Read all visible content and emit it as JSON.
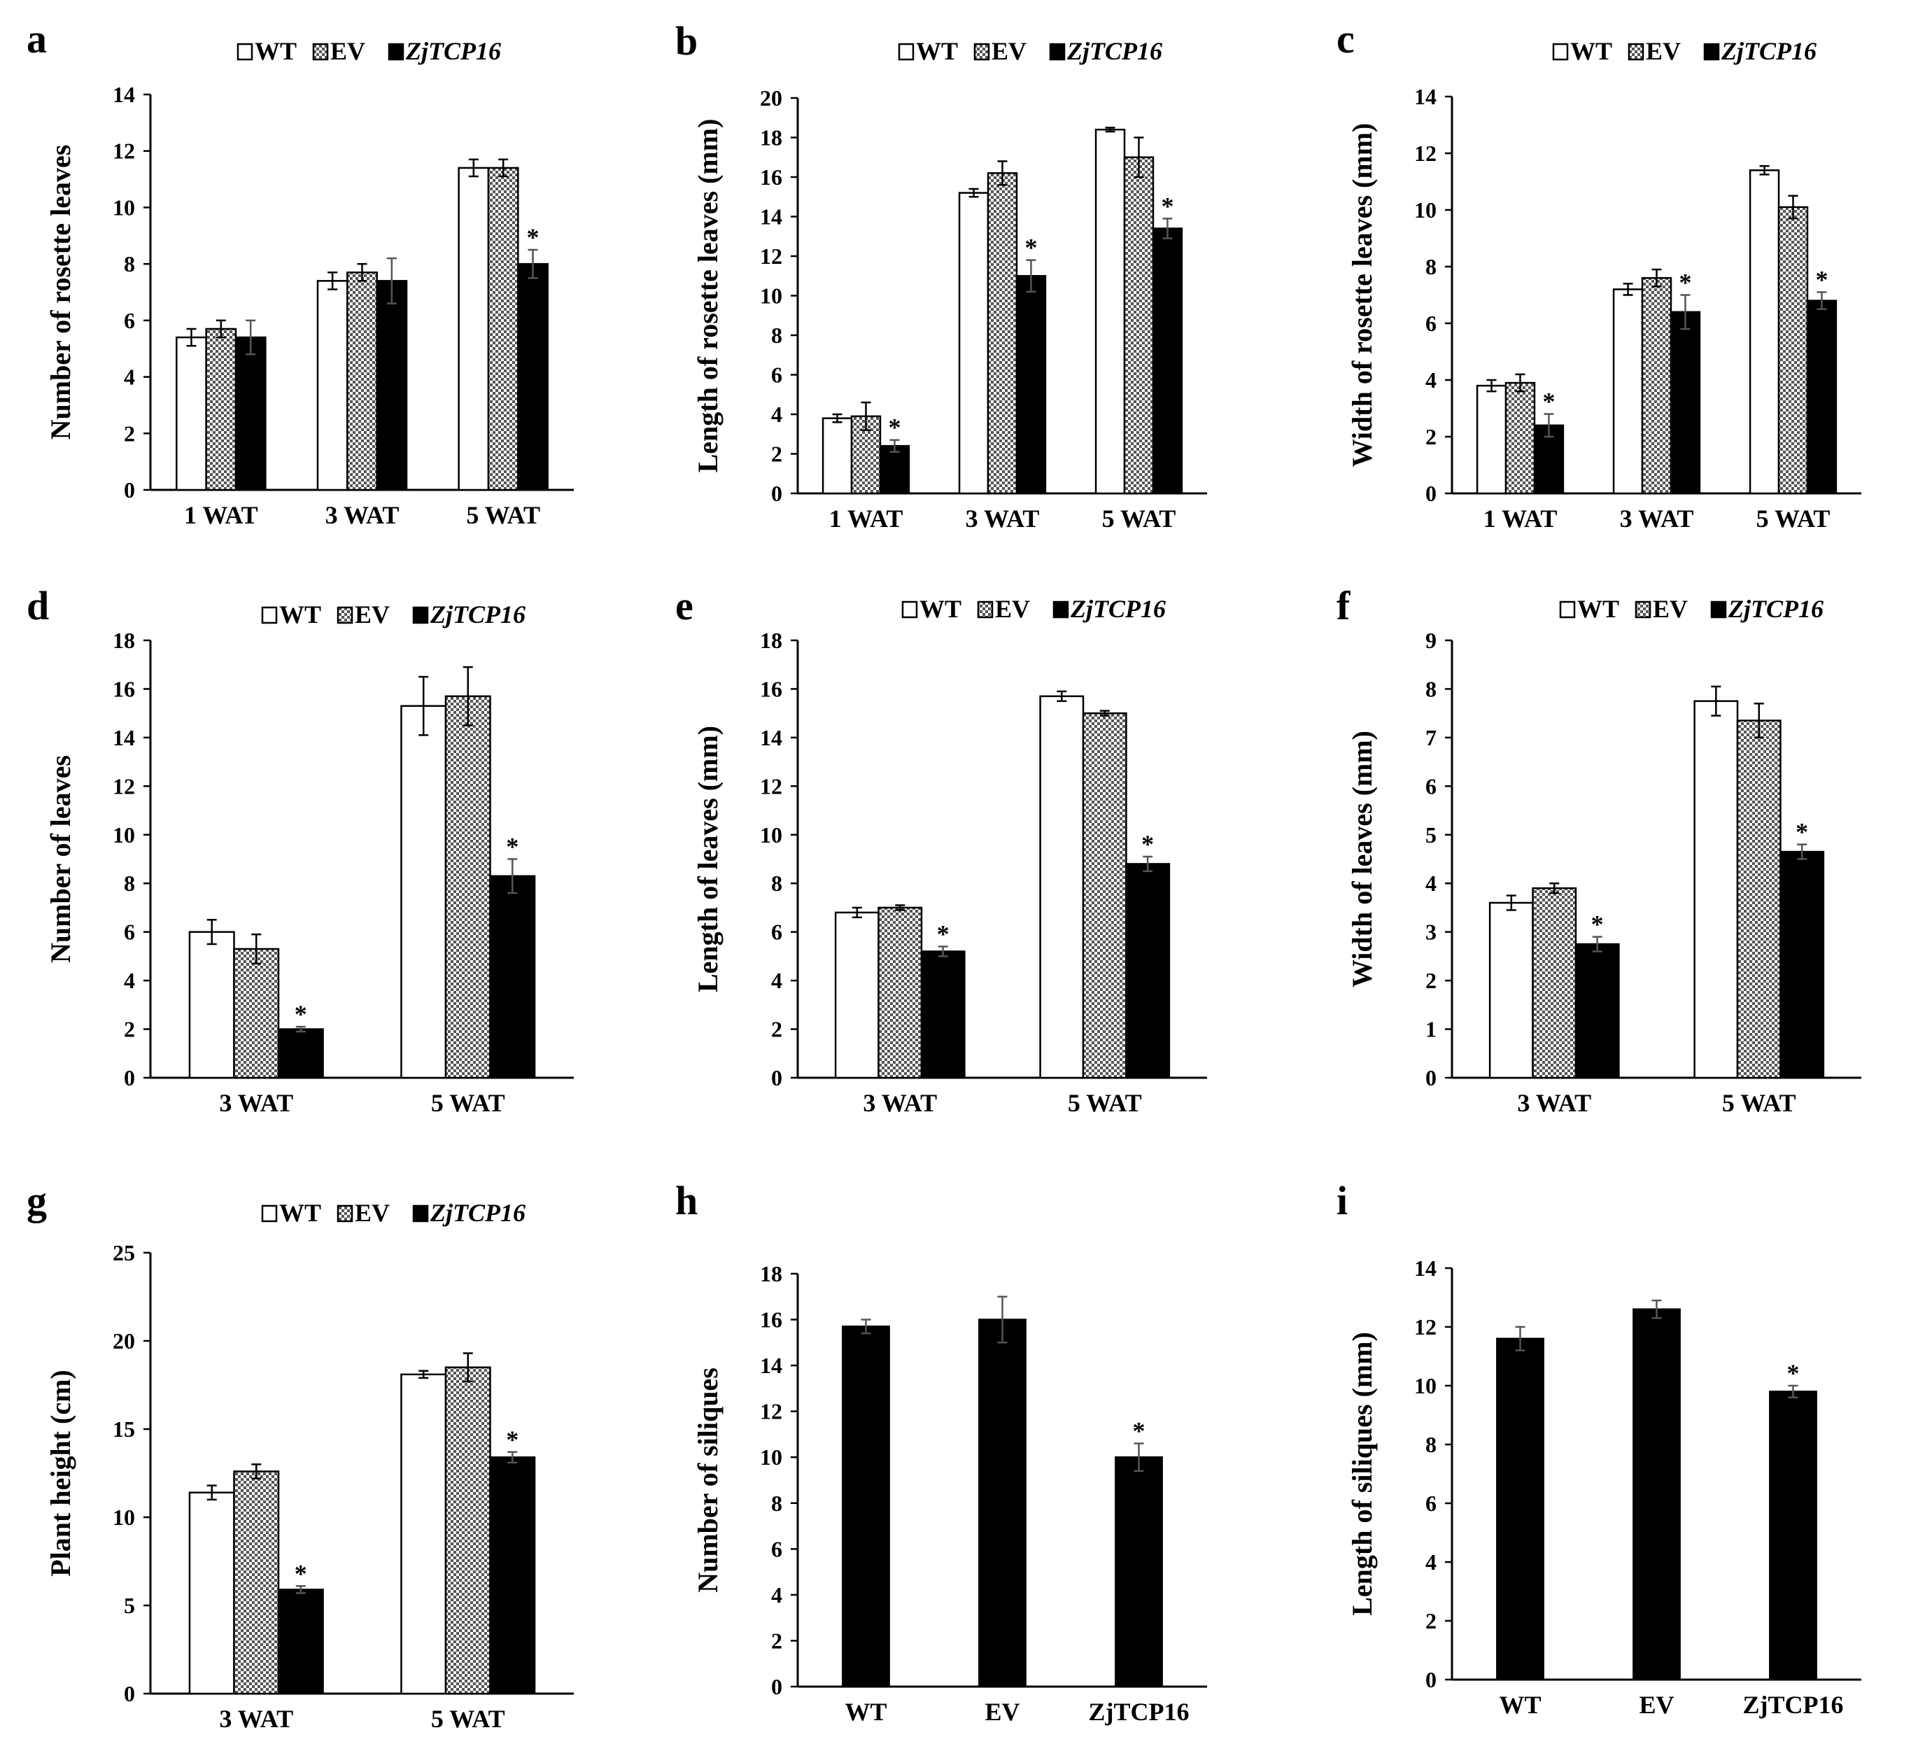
{
  "chart_data": [
    {
      "panel": "a",
      "type": "bar",
      "ylabel": "Number of rosette leaves",
      "ylim": [
        0,
        14
      ],
      "ystep": 2,
      "legend": [
        "WT",
        "EV",
        "ZjTCP16"
      ],
      "legend_position": "top",
      "categories": [
        "1 WAT",
        "3 WAT",
        "5 WAT"
      ],
      "series": [
        {
          "name": "WT",
          "fill": "white",
          "values": [
            5.4,
            7.4,
            11.4
          ],
          "errors": [
            0.3,
            0.3,
            0.3
          ],
          "sig": [
            false,
            false,
            false
          ]
        },
        {
          "name": "EV",
          "fill": "check",
          "values": [
            5.7,
            7.7,
            11.4
          ],
          "errors": [
            0.3,
            0.3,
            0.3
          ],
          "sig": [
            false,
            false,
            false
          ]
        },
        {
          "name": "ZjTCP16",
          "fill": "black",
          "values": [
            5.4,
            7.4,
            8.0
          ],
          "errors": [
            0.6,
            0.8,
            0.5
          ],
          "sig": [
            false,
            false,
            true
          ]
        }
      ]
    },
    {
      "panel": "b",
      "type": "bar",
      "ylabel": "Length of rosette leaves (mm)",
      "ylim": [
        0,
        20
      ],
      "ystep": 2,
      "legend": [
        "WT",
        "EV",
        "ZjTCP16"
      ],
      "legend_position": "top",
      "categories": [
        "1 WAT",
        "3 WAT",
        "5 WAT"
      ],
      "series": [
        {
          "name": "WT",
          "fill": "white",
          "values": [
            3.8,
            15.2,
            18.4
          ],
          "errors": [
            0.2,
            0.2,
            0.1
          ],
          "sig": [
            false,
            false,
            false
          ]
        },
        {
          "name": "EV",
          "fill": "check",
          "values": [
            3.9,
            16.2,
            17.0
          ],
          "errors": [
            0.7,
            0.6,
            1.0
          ],
          "sig": [
            false,
            false,
            false
          ]
        },
        {
          "name": "ZjTCP16",
          "fill": "black",
          "values": [
            2.4,
            11.0,
            13.4
          ],
          "errors": [
            0.3,
            0.8,
            0.5
          ],
          "sig": [
            true,
            true,
            true
          ]
        }
      ]
    },
    {
      "panel": "c",
      "type": "bar",
      "ylabel": "Width of rosette leaves (mm)",
      "ylim": [
        0,
        14
      ],
      "ystep": 2,
      "legend": [
        "WT",
        "EV",
        "ZjTCP16"
      ],
      "legend_position": "top",
      "categories": [
        "1 WAT",
        "3 WAT",
        "5 WAT"
      ],
      "series": [
        {
          "name": "WT",
          "fill": "white",
          "values": [
            3.8,
            7.2,
            11.4
          ],
          "errors": [
            0.2,
            0.2,
            0.15
          ],
          "sig": [
            false,
            false,
            false
          ]
        },
        {
          "name": "EV",
          "fill": "check",
          "values": [
            3.9,
            7.6,
            10.1
          ],
          "errors": [
            0.3,
            0.3,
            0.4
          ],
          "sig": [
            false,
            false,
            false
          ]
        },
        {
          "name": "ZjTCP16",
          "fill": "black",
          "values": [
            2.4,
            6.4,
            6.8
          ],
          "errors": [
            0.4,
            0.6,
            0.3
          ],
          "sig": [
            true,
            true,
            true
          ]
        }
      ]
    },
    {
      "panel": "d",
      "type": "bar",
      "ylabel": "Number of leaves",
      "ylim": [
        0,
        18
      ],
      "ystep": 2,
      "legend": [
        "WT",
        "EV",
        "ZjTCP16"
      ],
      "legend_position": "top",
      "categories": [
        "3 WAT",
        "5 WAT"
      ],
      "series": [
        {
          "name": "WT",
          "fill": "white",
          "values": [
            6.0,
            15.3
          ],
          "errors": [
            0.5,
            1.2
          ],
          "sig": [
            false,
            false
          ]
        },
        {
          "name": "EV",
          "fill": "check",
          "values": [
            5.3,
            15.7
          ],
          "errors": [
            0.6,
            1.2
          ],
          "sig": [
            false,
            false
          ]
        },
        {
          "name": "ZjTCP16",
          "fill": "black",
          "values": [
            2.0,
            8.3
          ],
          "errors": [
            0.1,
            0.7
          ],
          "sig": [
            true,
            true
          ]
        }
      ]
    },
    {
      "panel": "e",
      "type": "bar",
      "ylabel": "Length of leaves (mm)",
      "ylim": [
        0,
        18
      ],
      "ystep": 2,
      "legend": [
        "WT",
        "EV",
        "ZjTCP16"
      ],
      "legend_position": "top",
      "categories": [
        "3 WAT",
        "5 WAT"
      ],
      "series": [
        {
          "name": "WT",
          "fill": "white",
          "values": [
            6.8,
            15.7
          ],
          "errors": [
            0.2,
            0.2
          ],
          "sig": [
            false,
            false
          ]
        },
        {
          "name": "EV",
          "fill": "check",
          "values": [
            7.0,
            15.0
          ],
          "errors": [
            0.1,
            0.1
          ],
          "sig": [
            false,
            false
          ]
        },
        {
          "name": "ZjTCP16",
          "fill": "black",
          "values": [
            5.2,
            8.8
          ],
          "errors": [
            0.2,
            0.3
          ],
          "sig": [
            true,
            true
          ]
        }
      ]
    },
    {
      "panel": "f",
      "type": "bar",
      "ylabel": "Width of leaves (mm)",
      "ylim": [
        0,
        9
      ],
      "ystep": 1,
      "legend": [
        "WT",
        "EV",
        "ZjTCP16"
      ],
      "legend_position": "top",
      "categories": [
        "3 WAT",
        "5 WAT"
      ],
      "series": [
        {
          "name": "WT",
          "fill": "white",
          "values": [
            3.6,
            7.75
          ],
          "errors": [
            0.15,
            0.3
          ],
          "sig": [
            false,
            false
          ]
        },
        {
          "name": "EV",
          "fill": "check",
          "values": [
            3.9,
            7.35
          ],
          "errors": [
            0.1,
            0.35
          ],
          "sig": [
            false,
            false
          ]
        },
        {
          "name": "ZjTCP16",
          "fill": "black",
          "values": [
            2.75,
            4.65
          ],
          "errors": [
            0.15,
            0.15
          ],
          "sig": [
            true,
            true
          ]
        }
      ]
    },
    {
      "panel": "g",
      "type": "bar",
      "ylabel": "Plant height (cm)",
      "ylim": [
        0,
        25
      ],
      "ystep": 5,
      "legend": [
        "WT",
        "EV",
        "ZjTCP16"
      ],
      "legend_position": "top",
      "categories": [
        "3 WAT",
        "5 WAT"
      ],
      "series": [
        {
          "name": "WT",
          "fill": "white",
          "values": [
            11.4,
            18.1
          ],
          "errors": [
            0.4,
            0.2
          ],
          "sig": [
            false,
            false
          ]
        },
        {
          "name": "EV",
          "fill": "check",
          "values": [
            12.6,
            18.5
          ],
          "errors": [
            0.4,
            0.8
          ],
          "sig": [
            false,
            false
          ]
        },
        {
          "name": "ZjTCP16",
          "fill": "black",
          "values": [
            5.9,
            13.4
          ],
          "errors": [
            0.2,
            0.3
          ],
          "sig": [
            true,
            true
          ]
        }
      ]
    },
    {
      "panel": "h",
      "type": "bar",
      "ylabel": "Number of siliques",
      "ylim": [
        0,
        18
      ],
      "ystep": 2,
      "legend": [],
      "legend_position": "none",
      "categories": [
        "WT",
        "EV",
        "ZjTCP16"
      ],
      "series": [
        {
          "name": "Siliques",
          "fill": "black",
          "values": [
            15.7,
            16.0,
            10.0
          ],
          "errors": [
            0.3,
            1.0,
            0.6
          ],
          "sig": [
            false,
            false,
            true
          ]
        }
      ]
    },
    {
      "panel": "i",
      "type": "bar",
      "ylabel": "Length of siliques (mm)",
      "ylim": [
        0,
        14
      ],
      "ystep": 2,
      "legend": [],
      "legend_position": "none",
      "categories": [
        "WT",
        "EV",
        "ZjTCP16"
      ],
      "series": [
        {
          "name": "Siliques",
          "fill": "black",
          "values": [
            11.6,
            12.6,
            9.8
          ],
          "errors": [
            0.4,
            0.3,
            0.2
          ],
          "sig": [
            false,
            false,
            true
          ]
        }
      ]
    }
  ]
}
